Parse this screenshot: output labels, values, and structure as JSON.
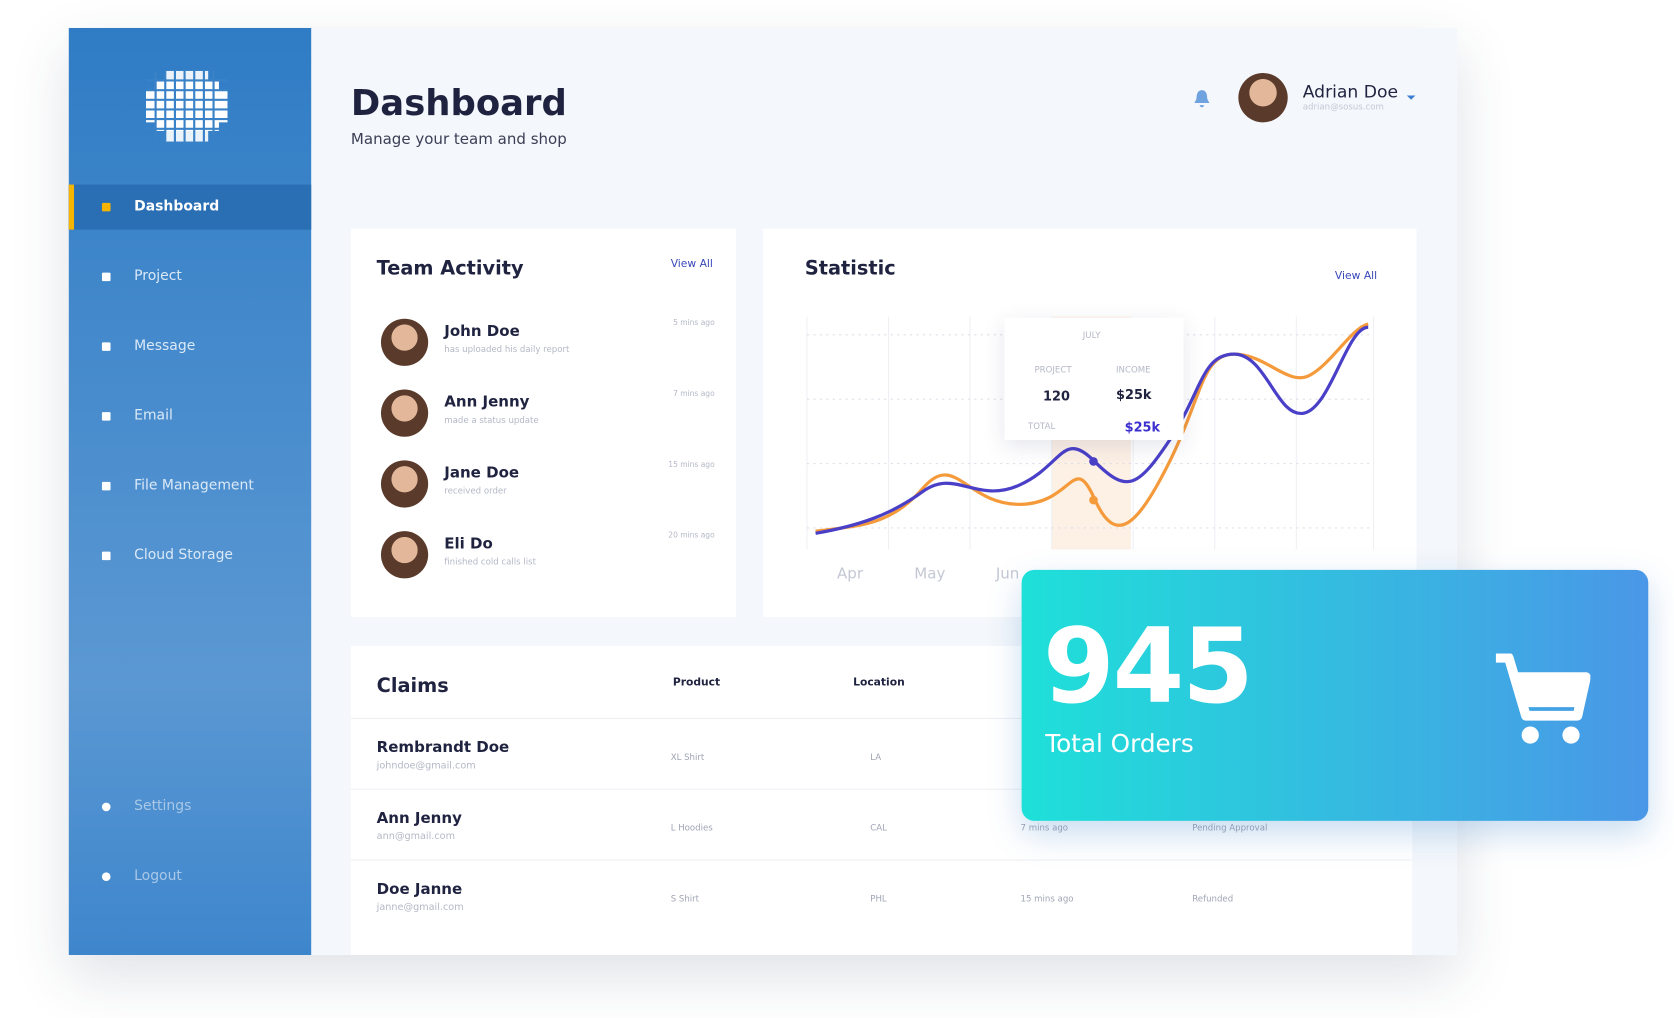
{
  "sidebar": {
    "nav": [
      "Dashboard",
      "Project",
      "Message",
      "Email",
      "File Management",
      "Cloud Storage"
    ],
    "bottom": [
      "Settings",
      "Logout"
    ]
  },
  "header": {
    "title": "Dashboard",
    "subtitle": "Manage your team and shop",
    "user": {
      "name": "Adrian Doe",
      "email": "adrian@sosus.com"
    }
  },
  "team_activity": {
    "title": "Team Activity",
    "view_all": "View All",
    "items": [
      {
        "name": "John Doe",
        "action": "has uploaded his daily report",
        "time": "5 mins ago"
      },
      {
        "name": "Ann Jenny",
        "action": "made a status update",
        "time": "7 mins ago"
      },
      {
        "name": "Jane Doe",
        "action": "received order",
        "time": "15 mins ago"
      },
      {
        "name": "Eli Do",
        "action": "finished cold calls list",
        "time": "20 mins ago"
      }
    ]
  },
  "statistic": {
    "title": "Statistic",
    "view_all": "View All",
    "months": [
      "Apr",
      "May",
      "Jun"
    ],
    "tooltip": {
      "month": "JULY",
      "project_label": "PROJECT",
      "project": "120",
      "income_label": "INCOME",
      "income": "$25k",
      "total_label": "TOTAL",
      "total": "$25k"
    }
  },
  "claims": {
    "title": "Claims",
    "columns": [
      "Product",
      "Location"
    ],
    "rows": [
      {
        "name": "Rembrandt Doe",
        "email": "johndoe@gmail.com",
        "product": "XL Shirt",
        "location": "LA"
      },
      {
        "name": "Ann Jenny",
        "email": "ann@gmail.com",
        "product": "L Hoodies",
        "location": "CAL",
        "time": "7 mins ago",
        "status": "Pending Approval"
      },
      {
        "name": "Doe Janne",
        "email": "janne@gmail.com",
        "product": "S Shirt",
        "location": "PHL",
        "time": "15 mins ago",
        "status": "Refunded"
      }
    ]
  },
  "orders": {
    "value": "945",
    "label": "Total Orders"
  }
}
